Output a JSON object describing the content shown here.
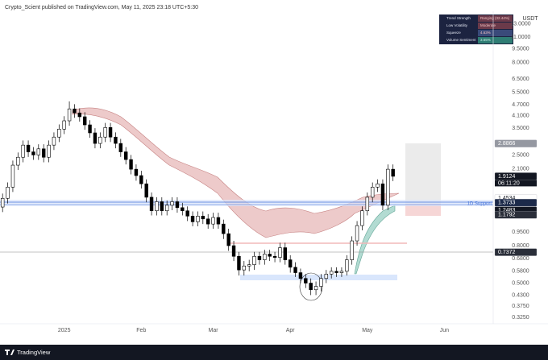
{
  "chart_data": {
    "type": "candlestick",
    "title": "Crypto_Scient published on TradingView.com, May 11, 2025 23:18 UTC+5:30",
    "currency": "USDT",
    "footer": "TradingView",
    "log_scale": true,
    "up_color": "#ffffff",
    "down_color": "#000000",
    "categories": [
      null,
      null,
      null,
      null,
      null,
      null,
      null,
      null,
      null,
      null,
      null,
      null,
      "2025",
      null,
      null,
      null,
      null,
      null,
      null,
      null,
      null,
      null,
      null,
      null,
      null,
      null,
      null,
      "Feb",
      null,
      null,
      null,
      null,
      null,
      null,
      null,
      null,
      null,
      null,
      null,
      null,
      null,
      "Mar",
      null,
      null,
      null,
      null,
      null,
      null,
      null,
      null,
      null,
      null,
      null,
      null,
      null,
      null,
      "Apr",
      null,
      null,
      null,
      null,
      null,
      null,
      null,
      null,
      null,
      null,
      null,
      null,
      null,
      null,
      "May",
      null,
      null,
      null,
      null,
      null,
      null,
      null,
      null,
      null,
      null,
      null,
      null,
      null,
      null,
      "Jun",
      null,
      null,
      null,
      null,
      null,
      null,
      null,
      null,
      null
    ],
    "open": [
      1.3,
      1.45,
      1.67,
      2.2,
      2.43,
      2.83,
      2.6,
      2.5,
      2.7,
      2.43,
      2.83,
      3.13,
      3.46,
      3.84,
      4.46,
      4.24,
      4.04,
      3.65,
      3.3,
      2.89,
      3.13,
      3.53,
      3.13,
      2.89,
      2.6,
      2.36,
      2.09,
      1.93,
      1.74,
      1.47,
      1.24,
      1.39,
      1.24,
      1.33,
      1.39,
      1.29,
      1.24,
      1.16,
      1.08,
      1.16,
      1.12,
      1.05,
      1.14,
      1.05,
      0.93,
      0.8,
      0.7,
      0.59,
      0.62,
      0.63,
      0.7,
      0.67,
      0.72,
      0.7,
      0.69,
      0.78,
      0.67,
      0.61,
      0.57,
      0.53,
      0.5,
      0.46,
      0.48,
      0.53,
      0.56,
      0.58,
      0.57,
      0.58,
      0.67,
      0.85,
      1.03,
      1.24,
      1.47,
      1.67,
      1.74,
      1.33,
      2.09,
      null,
      null,
      null,
      null,
      null,
      null,
      null,
      null,
      null,
      null,
      null,
      null,
      null,
      null,
      null,
      null,
      null,
      null,
      null
    ],
    "high": [
      1.54,
      1.77,
      2.33,
      2.58,
      3.0,
      3.0,
      2.76,
      2.86,
      2.86,
      3.0,
      3.32,
      3.67,
      4.07,
      4.9,
      4.73,
      4.49,
      4.28,
      3.87,
      3.5,
      3.32,
      3.74,
      3.74,
      3.32,
      3.06,
      2.76,
      2.5,
      2.22,
      2.05,
      1.84,
      1.56,
      1.47,
      1.47,
      1.41,
      1.47,
      1.47,
      1.37,
      1.31,
      1.23,
      1.23,
      1.23,
      1.19,
      1.21,
      1.21,
      1.11,
      0.99,
      0.85,
      0.74,
      0.66,
      0.67,
      0.74,
      0.74,
      0.76,
      0.76,
      0.74,
      0.83,
      0.83,
      0.71,
      0.65,
      0.6,
      0.56,
      0.53,
      0.51,
      0.56,
      0.59,
      0.61,
      0.61,
      0.61,
      0.71,
      0.9,
      1.09,
      1.31,
      1.56,
      1.77,
      1.84,
      1.84,
      2.22,
      2.22,
      null,
      null,
      null,
      null,
      null,
      null,
      null,
      null,
      null,
      null,
      null,
      null,
      null,
      null,
      null,
      null,
      null,
      null,
      null
    ],
    "low": [
      1.22,
      1.36,
      1.57,
      2.07,
      2.28,
      2.44,
      2.35,
      2.35,
      2.28,
      2.28,
      2.66,
      2.94,
      3.25,
      3.61,
      3.99,
      3.8,
      3.43,
      3.1,
      2.72,
      2.72,
      2.94,
      2.94,
      2.72,
      2.44,
      2.22,
      1.96,
      1.81,
      1.64,
      1.38,
      1.17,
      1.17,
      1.17,
      1.17,
      1.25,
      1.21,
      1.17,
      1.09,
      1.02,
      1.02,
      1.05,
      0.99,
      0.99,
      0.99,
      0.87,
      0.75,
      0.66,
      0.55,
      0.55,
      0.58,
      0.59,
      0.63,
      0.63,
      0.66,
      0.65,
      0.65,
      0.63,
      0.57,
      0.54,
      0.5,
      0.47,
      0.43,
      0.43,
      0.45,
      0.5,
      0.53,
      0.54,
      0.54,
      0.55,
      0.63,
      0.8,
      0.97,
      1.17,
      1.38,
      1.57,
      1.25,
      1.25,
      1.8,
      null,
      null,
      null,
      null,
      null,
      null,
      null,
      null,
      null,
      null,
      null,
      null,
      null,
      null,
      null,
      null,
      null,
      null,
      null
    ],
    "close": [
      1.45,
      1.67,
      2.2,
      2.43,
      2.83,
      2.6,
      2.5,
      2.7,
      2.43,
      2.83,
      3.13,
      3.46,
      3.84,
      4.46,
      4.24,
      4.04,
      3.65,
      3.3,
      2.89,
      3.13,
      3.53,
      3.13,
      2.89,
      2.6,
      2.36,
      2.09,
      1.93,
      1.74,
      1.47,
      1.24,
      1.39,
      1.24,
      1.33,
      1.39,
      1.29,
      1.24,
      1.16,
      1.08,
      1.16,
      1.12,
      1.05,
      1.14,
      1.05,
      0.93,
      0.8,
      0.7,
      0.59,
      0.62,
      0.63,
      0.7,
      0.67,
      0.72,
      0.7,
      0.69,
      0.78,
      0.67,
      0.61,
      0.57,
      0.53,
      0.5,
      0.46,
      0.48,
      0.53,
      0.56,
      0.58,
      0.57,
      0.58,
      0.67,
      0.85,
      1.03,
      1.24,
      1.47,
      1.67,
      1.74,
      1.33,
      2.09,
      1.9124,
      null,
      null,
      null,
      null,
      null,
      null,
      null,
      null,
      null,
      null,
      null,
      null,
      null,
      null,
      null,
      null,
      null,
      null,
      null
    ],
    "ylim": [
      0.3,
      14.6
    ],
    "yticks": [
      {
        "value": 13,
        "label": "13.0000"
      },
      {
        "value": 11,
        "label": "11.0000"
      },
      {
        "value": 9.5,
        "label": "9.5000"
      },
      {
        "value": 8,
        "label": "8.0000"
      },
      {
        "value": 6.5,
        "label": "6.5000"
      },
      {
        "value": 5.5,
        "label": "5.5000"
      },
      {
        "value": 4.7,
        "label": "4.7000"
      },
      {
        "value": 4.1,
        "label": "4.1000"
      },
      {
        "value": 3.5,
        "label": "3.5000"
      },
      {
        "value": 2.5,
        "label": "2.5000"
      },
      {
        "value": 2.1,
        "label": "2.1000"
      },
      {
        "value": 0.95,
        "label": "0.9500"
      },
      {
        "value": 0.8,
        "label": "0.8000"
      },
      {
        "value": 0.68,
        "label": "0.6800"
      },
      {
        "value": 0.58,
        "label": "0.5800"
      },
      {
        "value": 0.5,
        "label": "0.5000"
      },
      {
        "value": 0.43,
        "label": "0.4300"
      },
      {
        "value": 0.375,
        "label": "0.3750"
      },
      {
        "value": 0.325,
        "label": "0.3250"
      }
    ],
    "price_labels": [
      {
        "value": 2.8866,
        "label": "2.8866",
        "color": "#9598a1",
        "text_color": "#ffffff"
      },
      {
        "value": 1.9124,
        "label": "1.9124",
        "color": "#131722",
        "text_color": "#ffffff"
      },
      {
        "value": 1.4534,
        "label": "1.4534",
        "color": "#ffffff",
        "text_color": "#131722"
      },
      {
        "value": 1.3733,
        "label": "1.3733",
        "color": "#1c2a4a",
        "text_color": "#ffffff"
      },
      {
        "value": 1.2483,
        "label": "1.2483",
        "color": "#131722",
        "text_color": "#ffffff"
      },
      {
        "value": 1.1792,
        "label": "1.1792",
        "color": "#2a2e39",
        "text_color": "#ffffff"
      },
      {
        "value": 0.7372,
        "label": "0.7372",
        "color": "#2a2e39",
        "text_color": "#ffffff"
      }
    ],
    "countdown": "06:11:20",
    "support_label": "1D Support",
    "indicator_table": [
      [
        "Trend Strength",
        "Ranging (32.44%)"
      ],
      [
        "Low Volatility",
        "Moderate"
      ],
      [
        "Squeeze",
        "4.63%"
      ],
      [
        "Volume Sentiment",
        "3.65%"
      ]
    ]
  }
}
